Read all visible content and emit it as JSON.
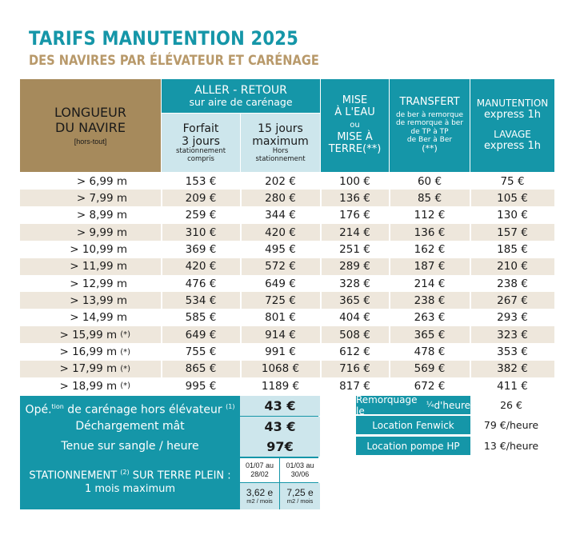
{
  "title": "TARIFS MANUTENTION 2025",
  "subtitle": "DES NAVIRES PAR ÉLÉVATEUR ET CARÉNAGE",
  "header": {
    "longueur_line1": "LONGUEUR",
    "longueur_line2": "DU NAVIRE",
    "longueur_note": "[hors-tout]",
    "aller_retour": "ALLER - RETOUR",
    "aller_retour_sub": "sur aire de carénage",
    "forfait_title1": "Forfait",
    "forfait_title2": "3 jours",
    "forfait_note1": "stationnement",
    "forfait_note2": "compris",
    "quinze_title1": "15 jours",
    "quinze_title2": "maximum",
    "quinze_note1": "Hors",
    "quinze_note2": "stationnement",
    "mise_line1": "MISE",
    "mise_line2": "À L'EAU",
    "mise_ou": "ou",
    "mise_line3": "MISE À",
    "mise_line4": "TERRE(**)",
    "transfert_title": "TRANSFERT",
    "transfert_l1": "de ber à remorque",
    "transfert_l2": "de remorque à ber",
    "transfert_l3": "de TP à TP",
    "transfert_l4": "de Ber à Ber",
    "transfert_note": "(**)",
    "manut_title": "MANUTENTION",
    "manut_sub": "express 1h",
    "lavage_title": "LAVAGE",
    "lavage_sub": "express 1h"
  },
  "rows": [
    {
      "len": "> 6,99 m",
      "star": "",
      "forfait": "153 €",
      "quinze": "202 €",
      "mise": "100 €",
      "transfert": "60 €",
      "manut": "75 €"
    },
    {
      "len": "> 7,99 m",
      "star": "",
      "forfait": "209 €",
      "quinze": "280 €",
      "mise": "136 €",
      "transfert": "85 €",
      "manut": "105 €"
    },
    {
      "len": "> 8,99 m",
      "star": "",
      "forfait": "259 €",
      "quinze": "344 €",
      "mise": "176 €",
      "transfert": "112 €",
      "manut": "130 €"
    },
    {
      "len": "> 9,99 m",
      "star": "",
      "forfait": "310 €",
      "quinze": "420 €",
      "mise": "214 €",
      "transfert": "136 €",
      "manut": "157 €"
    },
    {
      "len": "> 10,99 m",
      "star": "",
      "forfait": "369 €",
      "quinze": "495 €",
      "mise": "251 €",
      "transfert": "162 €",
      "manut": "185 €"
    },
    {
      "len": "> 11,99 m",
      "star": "",
      "forfait": "420 €",
      "quinze": "572 €",
      "mise": "289 €",
      "transfert": "187 €",
      "manut": "210 €"
    },
    {
      "len": "> 12,99 m",
      "star": "",
      "forfait": "476 €",
      "quinze": "649 €",
      "mise": "328 €",
      "transfert": "214 €",
      "manut": "238 €"
    },
    {
      "len": "> 13,99 m",
      "star": "",
      "forfait": "534 €",
      "quinze": "725 €",
      "mise": "365 €",
      "transfert": "238 €",
      "manut": "267 €"
    },
    {
      "len": "> 14,99 m",
      "star": "",
      "forfait": "585 €",
      "quinze": "801 €",
      "mise": "404 €",
      "transfert": "263 €",
      "manut": "293 €"
    },
    {
      "len": "> 15,99 m",
      "star": "(*)",
      "forfait": "649 €",
      "quinze": "914 €",
      "mise": "508 €",
      "transfert": "365 €",
      "manut": "323 €"
    },
    {
      "len": "> 16,99 m",
      "star": "(*)",
      "forfait": "755 €",
      "quinze": "991 €",
      "mise": "612 €",
      "transfert": "478 €",
      "manut": "353 €"
    },
    {
      "len": "> 17,99 m",
      "star": "(*)",
      "forfait": "865 €",
      "quinze": "1068 €",
      "mise": "716 €",
      "transfert": "569 €",
      "manut": "382 €"
    },
    {
      "len": "> 18,99 m",
      "star": "(*)",
      "forfait": "995 €",
      "quinze": "1189 €",
      "mise": "817 €",
      "transfert": "672 €",
      "manut": "411 €"
    }
  ],
  "extras": {
    "ope_prefix": "Opé.",
    "ope_sup": "tion",
    "ope_text": " de carénage hors élévateur ",
    "ope_note": "(1)",
    "ope_price": "43 €",
    "dechargement_label": "Déchargement mât",
    "dechargement_price": "43 €",
    "tenue_label": "Tenue sur sangle / heure",
    "tenue_price": "97€",
    "stationnement_a": "STATIONNEMENT ",
    "stationnement_note": "(2)",
    "stationnement_b": " SUR TERRE PLEIN :",
    "stationnement_c": "1 mois maximum",
    "period1_l1": "01/07 au",
    "period1_l2": "28/02",
    "period2_l1": "01/03 au",
    "period2_l2": "30/06",
    "price1": "3,62 e",
    "price1_unit": "m2 / mois",
    "price2": "7,25 e",
    "price2_unit": "m2 / mois"
  },
  "right_services": [
    {
      "label_pre": "Remorquage le ",
      "label_frac": "¼",
      "label_post": " d'heure",
      "price": "26 €"
    },
    {
      "label_pre": "Location Fenwick",
      "label_frac": "",
      "label_post": "",
      "price": "79 €/heure"
    },
    {
      "label_pre": "Location pompe HP",
      "label_frac": "",
      "label_post": "",
      "price": "13 €/heure"
    }
  ],
  "colors": {
    "teal": "#1596a8",
    "gold": "#a68a5c",
    "light_blue": "#cde6ec",
    "row_alt": "#eee7dc"
  }
}
